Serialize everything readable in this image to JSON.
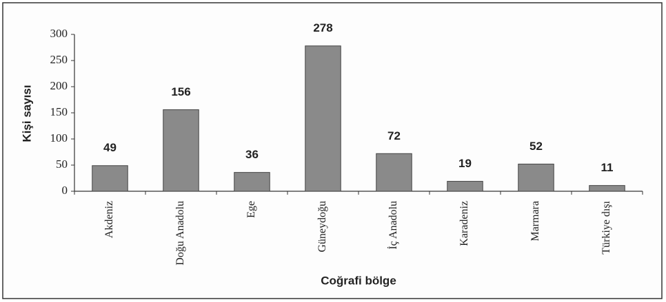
{
  "chart_data": {
    "type": "bar",
    "categories": [
      "Akdeniz",
      "Doğu Anadolu",
      "Ege",
      "Güneydoğu",
      "İç Anadolu",
      "Karadeniz",
      "Marmara",
      "Türkiye dışı"
    ],
    "values": [
      49,
      156,
      36,
      278,
      72,
      19,
      52,
      11
    ],
    "color": "#8a8a8a",
    "x_label": "Coğrafi bölge",
    "y_label": "Kişi sayısı",
    "ylim": [
      0,
      300
    ],
    "yticks": [
      0,
      50,
      100,
      150,
      200,
      250,
      300
    ],
    "grid": false
  }
}
